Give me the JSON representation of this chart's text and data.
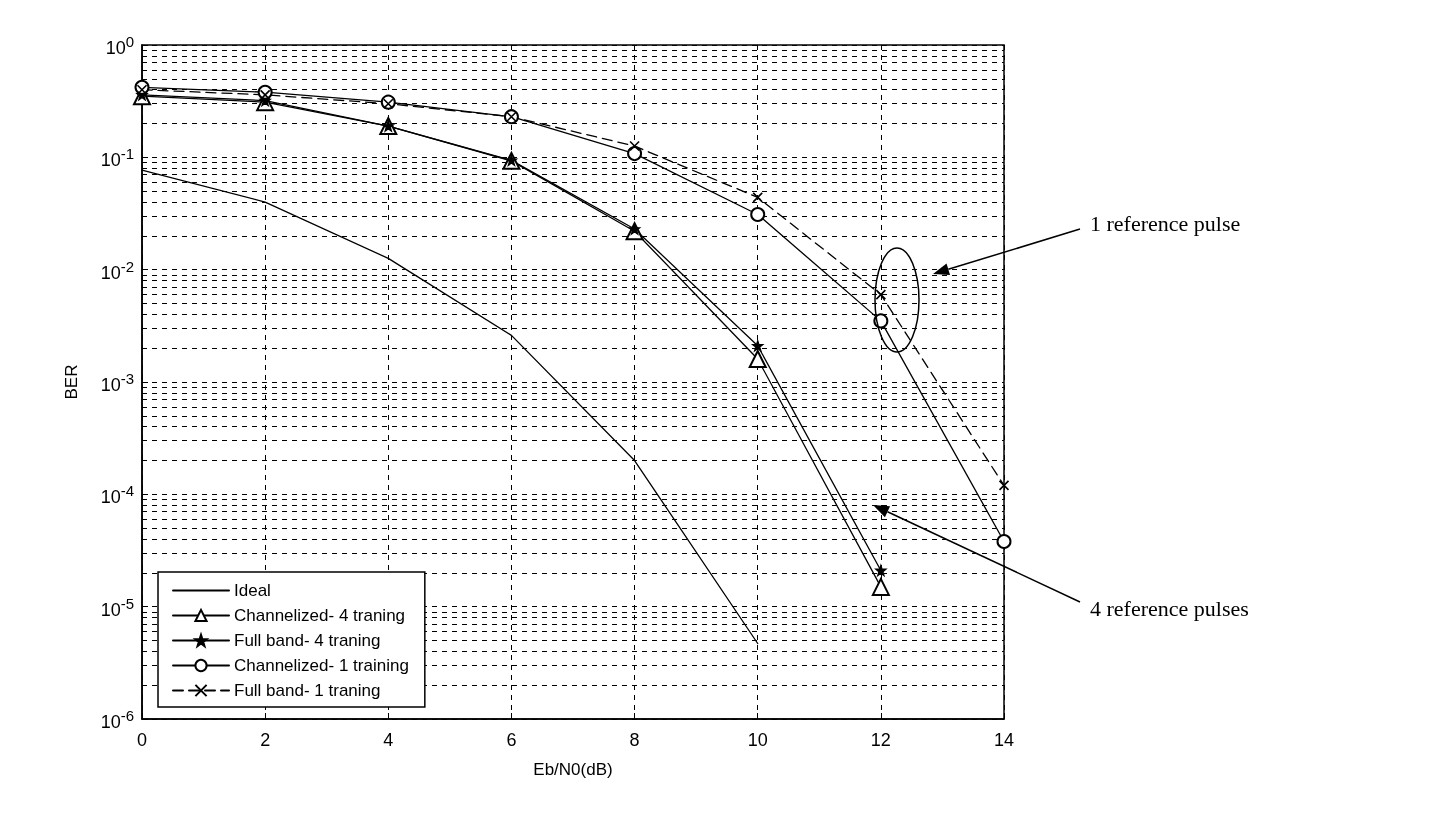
{
  "chart_data": {
    "type": "line",
    "x": [
      0,
      2,
      4,
      6,
      8,
      10,
      12,
      14
    ],
    "xlabel": "Eb/N0(dB)",
    "ylabel": "BER",
    "xlim": [
      0,
      14
    ],
    "xticks": [
      0,
      2,
      4,
      6,
      8,
      10,
      12,
      14
    ],
    "ylim": [
      1e-06,
      1
    ],
    "yticks": [
      {
        "value": 1e-06,
        "label": "10$^{-6}$"
      },
      {
        "value": 1e-05,
        "label": "10$^{-5}$"
      },
      {
        "value": 0.0001,
        "label": "10$^{-4}$"
      },
      {
        "value": 0.001,
        "label": "10$^{-3}$"
      },
      {
        "value": 0.01,
        "label": "10$^{-2}$"
      },
      {
        "value": 0.1,
        "label": "10$^{-1}$"
      },
      {
        "value": 1,
        "label": "10$^{0}$"
      }
    ],
    "log": "y",
    "grid": true,
    "legend": "bottom left",
    "series": [
      {
        "name": "Ideal",
        "color": "#000000",
        "marker": "none",
        "line_style": "solid",
        "x": [
          0,
          2,
          4,
          6,
          8,
          10
        ],
        "values": [
          0.077,
          0.04,
          0.0126,
          0.0026,
          0.0002,
          4.7e-06
        ]
      },
      {
        "name": "Channelized- 4 traning",
        "color": "#000000",
        "marker": "triangle",
        "line_style": "solid",
        "x": [
          0,
          2,
          4,
          6,
          8,
          10,
          12
        ],
        "values": [
          0.35,
          0.31,
          0.19,
          0.093,
          0.022,
          0.0016,
          1.5e-05
        ]
      },
      {
        "name": "Full band- 4 traning",
        "color": "#000000",
        "marker": "star",
        "line_style": "solid",
        "x": [
          0,
          2,
          4,
          6,
          8,
          10,
          12
        ],
        "values": [
          0.36,
          0.32,
          0.19,
          0.094,
          0.023,
          0.0021,
          2.1e-05
        ]
      },
      {
        "name": "Channelized- 1 training",
        "color": "#000000",
        "marker": "circle",
        "line_style": "solid",
        "values": [
          0.42,
          0.38,
          0.31,
          0.23,
          0.108,
          0.031,
          0.0035,
          3.8e-05
        ]
      },
      {
        "name": "Full band- 1 traning",
        "color": "#000000",
        "marker": "cross",
        "line_style": "dashed",
        "values": [
          0.4,
          0.36,
          0.3,
          0.23,
          0.126,
          0.044,
          0.006,
          0.00012
        ]
      }
    ],
    "annotations": [
      "1 reference pulse",
      "4 reference pulses"
    ]
  }
}
